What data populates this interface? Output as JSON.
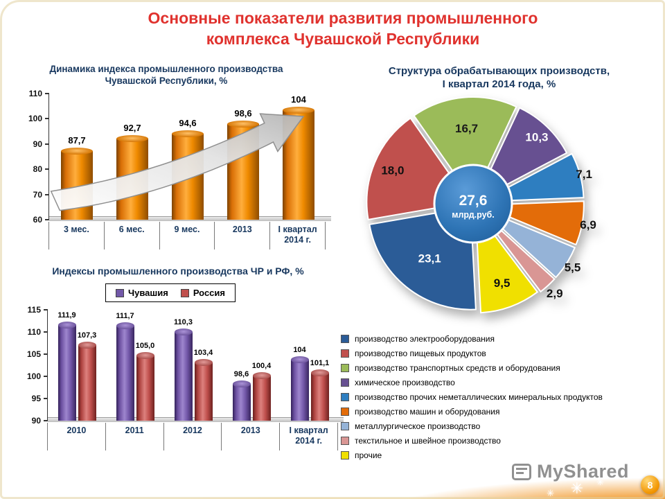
{
  "title": {
    "line1": "Основные показатели развития промышленного",
    "line2": "комплекса Чувашской Республики"
  },
  "footer": {
    "watermark": "MyShared",
    "page": "8",
    "sparkle": "✳"
  },
  "chart_data": [
    {
      "type": "bar",
      "title": "Динамика индекса промышленного производства Чувашской Республики, %",
      "categories": [
        "3 мес.",
        "6 мес.",
        "9 мес.",
        "2013",
        "I квартал\n2014 г."
      ],
      "values": [
        87.7,
        92.7,
        94.6,
        98.6,
        104
      ],
      "labels": [
        "87,7",
        "92,7",
        "94,6",
        "98,6",
        "104"
      ],
      "ylim": [
        60,
        110
      ],
      "yticks": [
        60,
        70,
        80,
        90,
        100,
        110
      ],
      "bar_color": "#E8750A",
      "annotation": "growth-arrow"
    },
    {
      "type": "pie",
      "title_line1": "Структура обрабатывающих производств,",
      "title_line2": "I квартал 2014 года, %",
      "center": {
        "value": "27,6",
        "unit": "млрд.руб."
      },
      "start_angle": -35,
      "slices": [
        {
          "name": "производство транспортных средств и оборудования",
          "label": "16,7",
          "value": 16.7,
          "color": "#9BBB59",
          "label_color": "#1a1a1a",
          "lr": 0.74,
          "explode": 6
        },
        {
          "name": "химическое производство",
          "label": "10,3",
          "value": 10.3,
          "color": "#675091",
          "label_color": "#ffffff",
          "lr": 0.9,
          "explode": 6
        },
        {
          "name": "производство прочих неметаллических минеральных продуктов",
          "label": "7,1",
          "value": 7.1,
          "color": "#2E7EC0",
          "label_color": "#111111",
          "lr": 1.12,
          "explode": 12
        },
        {
          "name": "производство машин и оборудования",
          "label": "6,9",
          "value": 6.9,
          "color": "#E36C09",
          "label_color": "#111111",
          "lr": 1.14,
          "explode": 12
        },
        {
          "name": "металлургическое производство",
          "label": "5,5",
          "value": 5.5,
          "color": "#95B3D7",
          "label_color": "#111111",
          "lr": 1.15,
          "explode": 12
        },
        {
          "name": "текстильное и швейное производство",
          "label": "2,9",
          "value": 2.9,
          "color": "#D99694",
          "label_color": "#111111",
          "lr": 1.18,
          "explode": 12
        },
        {
          "name": "прочие",
          "label": "9,5",
          "value": 9.5,
          "color": "#F0E000",
          "label_color": "#111111",
          "lr": 0.82,
          "explode": 10
        },
        {
          "name": "производство электрооборудования",
          "label": "23,1",
          "value": 23.1,
          "color": "#2B5C97",
          "label_color": "#ffffff",
          "lr": 0.68,
          "explode": 6
        },
        {
          "name": "производство пищевых продуктов",
          "label": "18,0",
          "value": 18.0,
          "color": "#C0504D",
          "label_color": "#111111",
          "lr": 0.85,
          "explode": 6
        }
      ],
      "legend_order": [
        7,
        8,
        0,
        1,
        2,
        3,
        4,
        5,
        6
      ]
    },
    {
      "type": "bar",
      "title": "Индексы промышленного производства ЧР и РФ, %",
      "categories": [
        "2010",
        "2011",
        "2012",
        "2013",
        "I квартал\n2014 г."
      ],
      "series": [
        {
          "name": "Чувашия",
          "color": "#7258A8",
          "values": [
            111.9,
            111.7,
            110.3,
            98.6,
            104
          ],
          "labels": [
            "111,9",
            "111,7",
            "110,3",
            "98,6",
            "104"
          ]
        },
        {
          "name": "Россия",
          "color": "#C0504D",
          "values": [
            107.3,
            105.0,
            103.4,
            100.4,
            101.1
          ],
          "labels": [
            "107,3",
            "105,0",
            "103,4",
            "100,4",
            "101,1"
          ]
        }
      ],
      "ylim": [
        90,
        115
      ],
      "yticks": [
        90,
        95,
        100,
        105,
        110,
        115
      ],
      "legend_position": "top"
    }
  ]
}
